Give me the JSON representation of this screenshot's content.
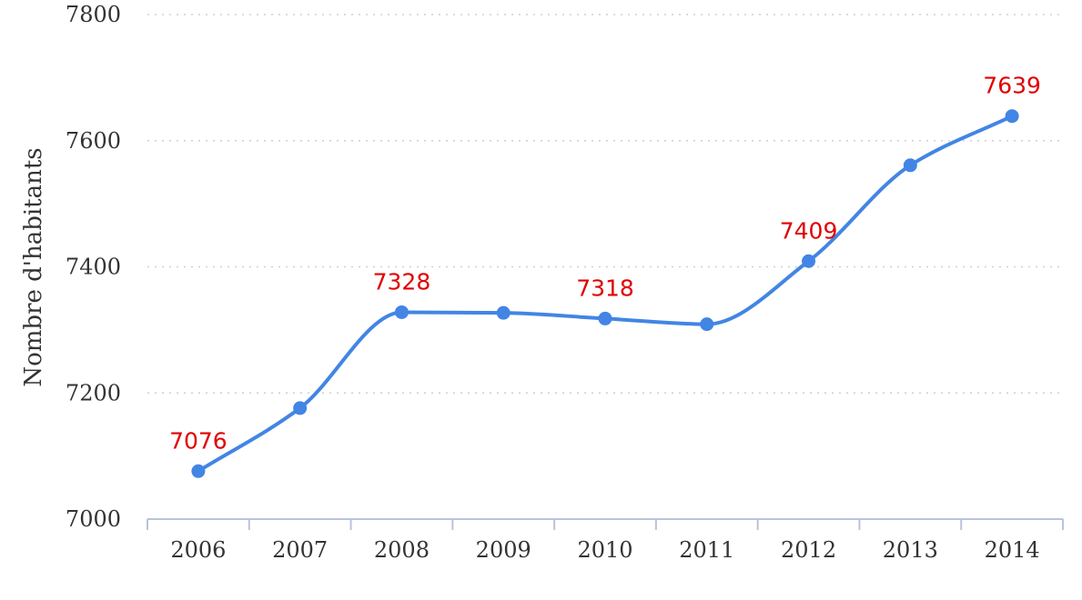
{
  "chart_data": {
    "type": "line",
    "x": [
      "2006",
      "2007",
      "2008",
      "2009",
      "2010",
      "2011",
      "2012",
      "2013",
      "2014"
    ],
    "series": [
      {
        "values": [
          7076,
          7176,
          7328,
          7327,
          7318,
          7309,
          7409,
          7561,
          7639
        ]
      }
    ],
    "data_labels": [
      {
        "index": 0,
        "text": "7076"
      },
      {
        "index": 2,
        "text": "7328"
      },
      {
        "index": 4,
        "text": "7318"
      },
      {
        "index": 6,
        "text": "7409"
      },
      {
        "index": 8,
        "text": "7639"
      }
    ],
    "ylabel": "Nombre d'habitants",
    "ylim": [
      7000,
      7800
    ],
    "yticks": [
      7000,
      7200,
      7400,
      7600,
      7800
    ],
    "grid": true,
    "line_color": "#4285e4",
    "label_color": "#e00000"
  }
}
